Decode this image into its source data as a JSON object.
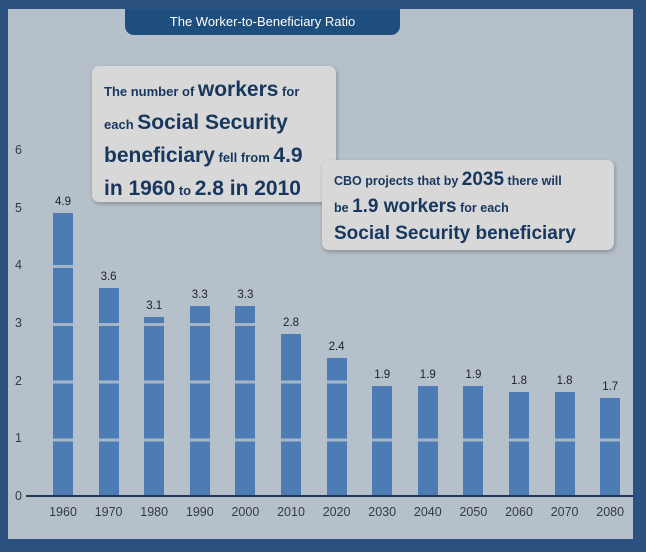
{
  "colors": {
    "frame": "#2b5181",
    "background": "#b6c0ca",
    "title_bar": "#1d4e7d",
    "title_text": "#ffffff",
    "bar": "#4d7cb5",
    "bar_stripe": "#a6b6c7",
    "note_bg": "#d8d8d8",
    "note_text": "#17375e",
    "axis_text": "#333a45",
    "axis_line": "#20365c"
  },
  "header": {
    "title": "The Worker-to-Beneficiary Ratio"
  },
  "annotation1": {
    "line1": {
      "a": "The number of ",
      "b": "workers",
      "c": " for"
    },
    "line2": {
      "a": "each ",
      "b": "Social Security"
    },
    "line3": {
      "a": "beneficiary",
      "b": " fell from ",
      "c": "4.9"
    },
    "line4": {
      "a": "in 1960",
      "b": " to ",
      "c": "2.8 in 2010"
    }
  },
  "annotation2": {
    "line1": {
      "a": "CBO projects that by ",
      "b": "2035",
      "c": " there will"
    },
    "line2": {
      "a": "be ",
      "b": "1.9 workers",
      "c": " for each"
    },
    "line3": {
      "a": "Social Security beneficiary"
    }
  },
  "chart_data": {
    "type": "bar",
    "title": "The Worker-to-Beneficiary Ratio",
    "categories": [
      "1960",
      "1970",
      "1980",
      "1990",
      "2000",
      "2010",
      "2020",
      "2030",
      "2040",
      "2050",
      "2060",
      "2070",
      "2080"
    ],
    "values": [
      4.9,
      3.6,
      3.1,
      3.3,
      3.3,
      2.8,
      2.4,
      1.9,
      1.9,
      1.9,
      1.8,
      1.8,
      1.7
    ],
    "xlabel": "",
    "ylabel": "",
    "ylim": [
      0,
      6
    ],
    "yticks": [
      0,
      1,
      2,
      3,
      4,
      5,
      6
    ],
    "bar_value_labels_shown": true,
    "legend_position": "none",
    "grid": "stripes-on-bars"
  }
}
